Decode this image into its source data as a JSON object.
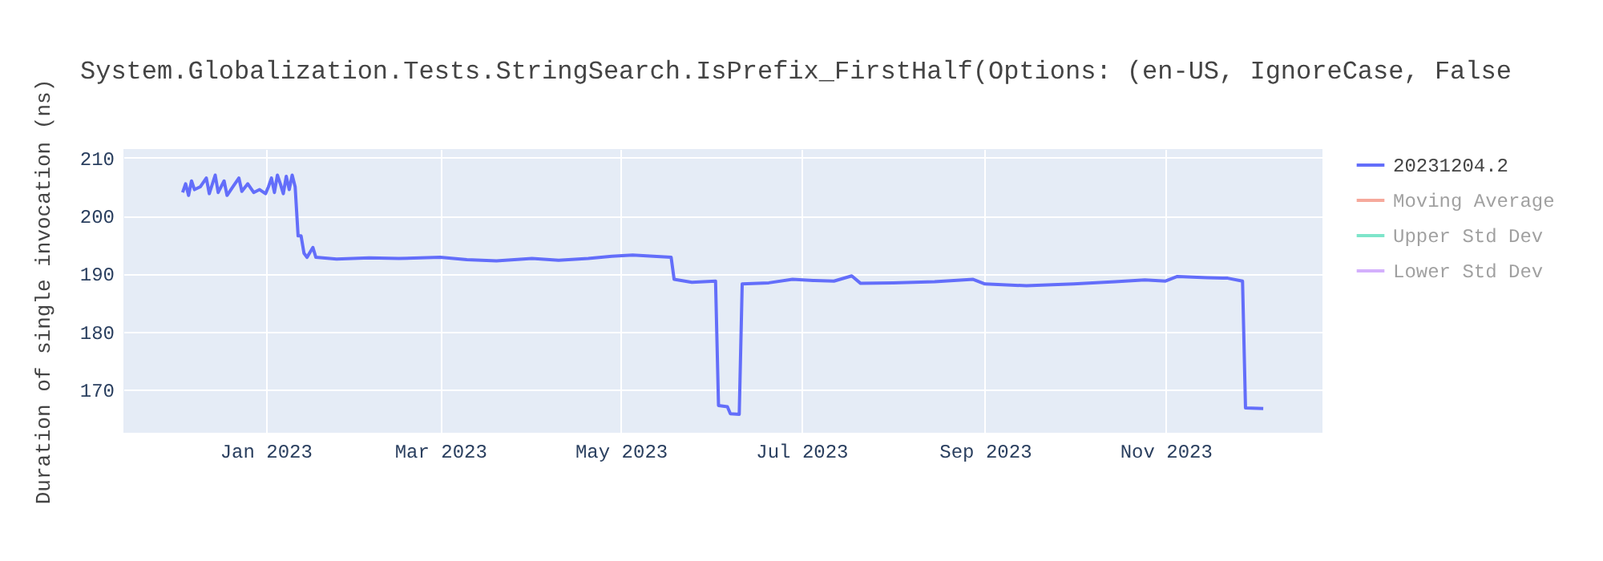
{
  "chart_data": {
    "type": "line",
    "title": "System.Globalization.Tests.StringSearch.IsPrefix_FirstHalf(Options: (en-US, IgnoreCase, False",
    "ylabel": "Duration of single invocation (ns)",
    "x": [
      "2022-12-04",
      "2022-12-05",
      "2022-12-06",
      "2022-12-07",
      "2022-12-08",
      "2022-12-10",
      "2022-12-12",
      "2022-12-13",
      "2022-12-15",
      "2022-12-16",
      "2022-12-18",
      "2022-12-19",
      "2022-12-21",
      "2022-12-23",
      "2022-12-24",
      "2022-12-26",
      "2022-12-28",
      "2022-12-30",
      "2023-01-01",
      "2023-01-02",
      "2023-01-03",
      "2023-01-04",
      "2023-01-05",
      "2023-01-06",
      "2023-01-07",
      "2023-01-08",
      "2023-01-09",
      "2023-01-10",
      "2023-01-11",
      "2023-01-12",
      "2023-01-13",
      "2023-01-14",
      "2023-01-15",
      "2023-01-17",
      "2023-01-18",
      "2023-01-25",
      "2023-02-05",
      "2023-02-15",
      "2023-03-01",
      "2023-03-10",
      "2023-03-20",
      "2023-04-01",
      "2023-04-10",
      "2023-04-20",
      "2023-04-28",
      "2023-05-05",
      "2023-05-12",
      "2023-05-18",
      "2023-05-19",
      "2023-05-25",
      "2023-06-02",
      "2023-06-03",
      "2023-06-06",
      "2023-06-07",
      "2023-06-10",
      "2023-06-11",
      "2023-06-20",
      "2023-06-28",
      "2023-07-05",
      "2023-07-12",
      "2023-07-18",
      "2023-07-21",
      "2023-08-01",
      "2023-08-15",
      "2023-08-28",
      "2023-09-01",
      "2023-09-15",
      "2023-10-01",
      "2023-10-15",
      "2023-10-25",
      "2023-11-01",
      "2023-11-05",
      "2023-11-15",
      "2023-11-22",
      "2023-11-27",
      "2023-11-28",
      "2023-12-04"
    ],
    "series": [
      {
        "name": "20231204.2",
        "color": "#636efa",
        "values": [
          204,
          205.5,
          203.5,
          206,
          204.5,
          205,
          206.5,
          203.8,
          207,
          204,
          206,
          203.5,
          205,
          206.5,
          204.2,
          205.5,
          204,
          204.5,
          203.8,
          205,
          206.5,
          204,
          207,
          205.5,
          203.8,
          206.8,
          204.5,
          207,
          205,
          196.5,
          196.5,
          193.5,
          192.8,
          194.5,
          192.8,
          192.5,
          192.7,
          192.6,
          192.8,
          192.4,
          192.2,
          192.6,
          192.3,
          192.6,
          193,
          193.2,
          193,
          192.8,
          189,
          188.5,
          188.7,
          167.2,
          167,
          165.8,
          165.7,
          188.2,
          188.4,
          189,
          188.8,
          188.7,
          189.6,
          188.3,
          188.4,
          188.6,
          189,
          188.2,
          187.9,
          188.2,
          188.6,
          188.9,
          188.7,
          189.5,
          189.3,
          189.2,
          188.7,
          166.8,
          166.7
        ]
      },
      {
        "name": "Moving Average",
        "color": "#ef553b",
        "values": [
          null,
          null,
          null,
          null,
          null,
          null,
          null,
          null,
          null,
          null,
          null,
          null,
          null,
          null,
          null,
          null,
          null,
          null,
          null,
          null,
          null,
          null,
          null,
          null,
          null,
          null,
          null,
          null,
          null,
          null,
          null,
          null,
          null,
          null,
          null,
          null,
          null,
          null,
          null,
          null,
          null,
          null,
          null,
          null,
          null,
          null,
          null,
          null,
          null,
          null,
          null,
          null,
          null,
          null,
          null,
          null,
          null,
          null,
          null,
          null,
          null,
          null,
          null,
          null,
          null,
          null,
          null,
          null,
          null,
          null,
          null,
          null,
          null,
          null,
          null,
          null,
          null
        ]
      },
      {
        "name": "Upper Std Dev",
        "color": "#00cc96",
        "values": [
          null,
          null,
          null,
          null,
          null,
          null,
          null,
          null,
          null,
          null,
          null,
          null,
          null,
          null,
          null,
          null,
          null,
          null,
          null,
          null,
          null,
          null,
          null,
          null,
          null,
          null,
          null,
          null,
          null,
          null,
          null,
          null,
          null,
          null,
          null,
          null,
          null,
          null,
          null,
          null,
          null,
          null,
          null,
          null,
          null,
          null,
          null,
          null,
          null,
          null,
          null,
          null,
          null,
          null,
          null,
          null,
          null,
          null,
          null,
          null,
          null,
          null,
          null,
          null,
          null,
          null,
          null,
          null,
          null,
          null,
          null,
          null,
          null,
          null,
          null,
          null,
          null
        ]
      },
      {
        "name": "Lower Std Dev",
        "color": "#ab63fa",
        "values": [
          null,
          null,
          null,
          null,
          null,
          null,
          null,
          null,
          null,
          null,
          null,
          null,
          null,
          null,
          null,
          null,
          null,
          null,
          null,
          null,
          null,
          null,
          null,
          null,
          null,
          null,
          null,
          null,
          null,
          null,
          null,
          null,
          null,
          null,
          null,
          null,
          null,
          null,
          null,
          null,
          null,
          null,
          null,
          null,
          null,
          null,
          null,
          null,
          null,
          null,
          null,
          null,
          null,
          null,
          null,
          null,
          null,
          null,
          null,
          null,
          null,
          null,
          null,
          null,
          null,
          null,
          null,
          null,
          null,
          null,
          null,
          null,
          null,
          null,
          null,
          null,
          null
        ]
      }
    ],
    "xlim": [
      "2022-11-14",
      "2023-12-24"
    ],
    "xticks": [
      {
        "value": "2023-01-01",
        "label": "Jan 2023"
      },
      {
        "value": "2023-03-01",
        "label": "Mar 2023"
      },
      {
        "value": "2023-05-01",
        "label": "May 2023"
      },
      {
        "value": "2023-07-01",
        "label": "Jul 2023"
      },
      {
        "value": "2023-09-01",
        "label": "Sep 2023"
      },
      {
        "value": "2023-11-01",
        "label": "Nov 2023"
      }
    ],
    "ylim": [
      162.5,
      211.5
    ],
    "yticks": [
      170,
      180,
      190,
      200,
      210
    ],
    "grid": true,
    "legend": "top right",
    "marker": "none",
    "line_style": "solid"
  }
}
